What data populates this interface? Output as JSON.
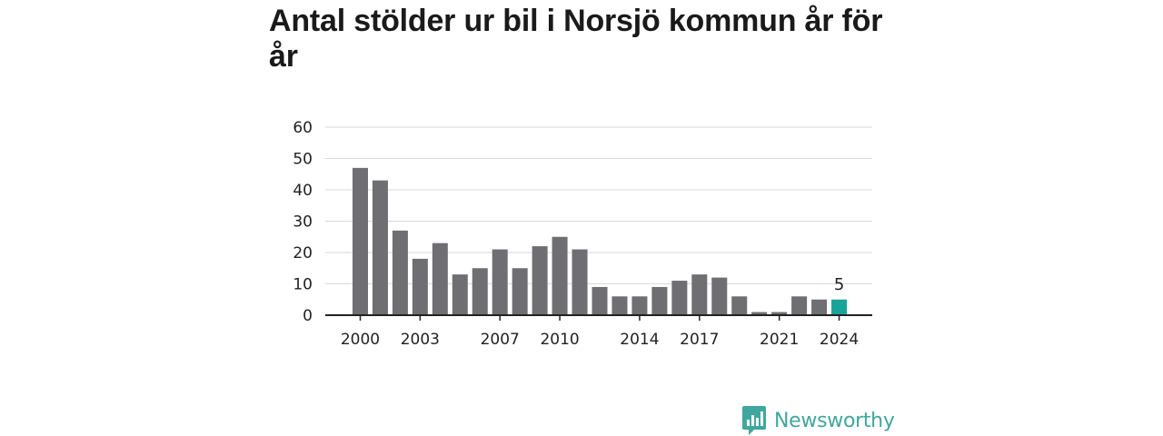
{
  "title": "Antal stölder ur bil i Norsjö kommun år för år",
  "brand": {
    "name": "Newsworthy",
    "icon": "newsworthy-logo-icon",
    "color": "#3fa7a0"
  },
  "colors": {
    "bar": "#6e6e73",
    "highlight": "#1aa398",
    "grid": "#d9d9d9",
    "axis": "#222222"
  },
  "chart_data": {
    "type": "bar",
    "title": "Antal stölder ur bil i Norsjö kommun år för år",
    "xlabel": "",
    "ylabel": "",
    "categories": [
      2000,
      2001,
      2002,
      2003,
      2004,
      2005,
      2006,
      2007,
      2008,
      2009,
      2010,
      2011,
      2012,
      2013,
      2014,
      2015,
      2016,
      2017,
      2018,
      2019,
      2020,
      2021,
      2022,
      2023,
      2024
    ],
    "values": [
      47,
      43,
      27,
      18,
      23,
      13,
      15,
      21,
      15,
      22,
      25,
      21,
      9,
      6,
      6,
      9,
      11,
      13,
      12,
      6,
      1,
      1,
      6,
      5,
      5
    ],
    "x_tick_labels": [
      2000,
      2003,
      2007,
      2010,
      2014,
      2017,
      2021,
      2024
    ],
    "y_ticks": [
      0,
      10,
      20,
      30,
      40,
      50,
      60
    ],
    "ylim": [
      0,
      60
    ],
    "grid": true,
    "highlight": {
      "category": 2024,
      "label": "5"
    }
  }
}
